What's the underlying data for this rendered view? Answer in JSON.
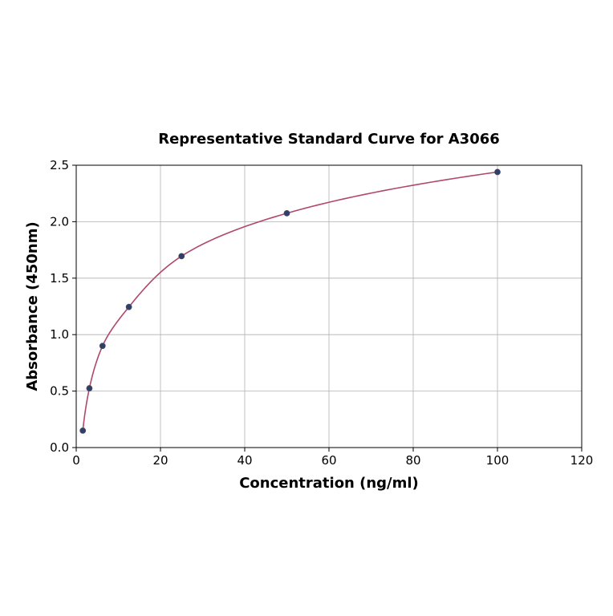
{
  "chart_data": {
    "type": "scatter",
    "title": "Representative Standard Curve for A3066",
    "xlabel": "Concentration (ng/ml)",
    "ylabel": "Absorbance (450nm)",
    "xlim": [
      0,
      120
    ],
    "ylim": [
      0,
      2.5
    ],
    "xticks": [
      0,
      20,
      40,
      60,
      80,
      100,
      120
    ],
    "yticks": [
      0.0,
      0.5,
      1.0,
      1.5,
      2.0,
      2.5
    ],
    "xtick_labels": [
      "0",
      "20",
      "40",
      "60",
      "80",
      "100",
      "120"
    ],
    "ytick_labels": [
      "0.0",
      "0.5",
      "1.0",
      "1.5",
      "2.0",
      "2.5"
    ],
    "grid": true,
    "series": [
      {
        "x": [
          1.5625,
          3.125,
          6.25,
          12.5,
          25,
          50,
          100
        ],
        "y": [
          0.15,
          0.525,
          0.9,
          1.245,
          1.695,
          2.075,
          2.44
        ],
        "marker_color": "#2e3f6e",
        "line_color": "#b0476d",
        "fit": "smooth curve"
      }
    ]
  }
}
